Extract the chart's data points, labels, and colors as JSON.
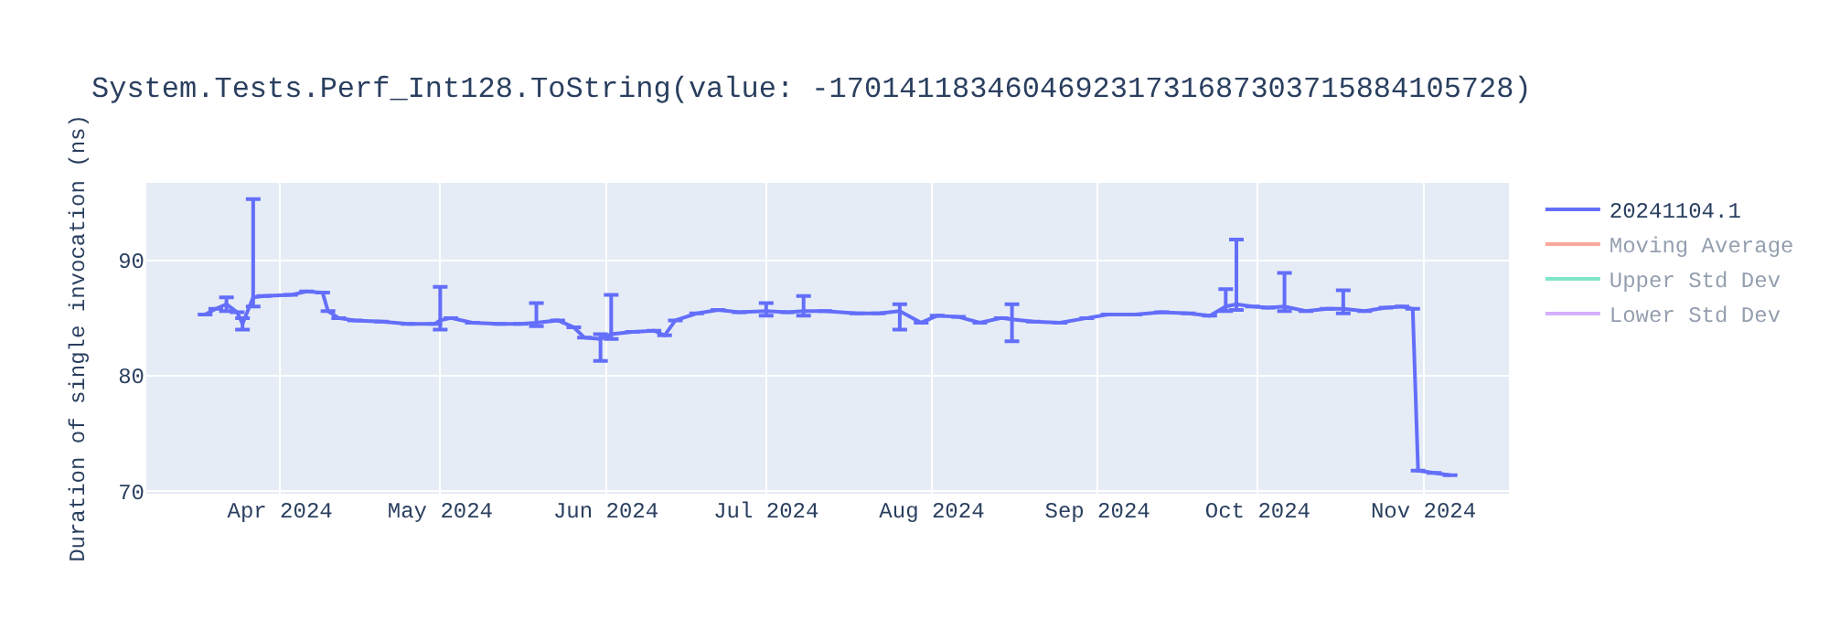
{
  "chart_data": {
    "type": "line",
    "title": "System.Tests.Perf_Int128.ToString(value: -170141183460469231731687303715884105728)",
    "ylabel": "Duration of single invocation (ns)",
    "x": [
      "2024-03-18",
      "2024-03-20",
      "2024-03-22",
      "2024-03-24",
      "2024-03-25",
      "2024-03-27",
      "2024-03-29",
      "2024-04-03",
      "2024-04-06",
      "2024-04-09",
      "2024-04-10",
      "2024-04-12",
      "2024-04-15",
      "2024-04-20",
      "2024-04-25",
      "2024-04-30",
      "2024-05-01",
      "2024-05-03",
      "2024-05-07",
      "2024-05-12",
      "2024-05-16",
      "2024-05-19",
      "2024-05-23",
      "2024-05-26",
      "2024-05-28",
      "2024-05-31",
      "2024-06-02",
      "2024-06-06",
      "2024-06-10",
      "2024-06-12",
      "2024-06-14",
      "2024-06-18",
      "2024-06-22",
      "2024-06-26",
      "2024-07-01",
      "2024-07-05",
      "2024-07-08",
      "2024-07-12",
      "2024-07-18",
      "2024-07-22",
      "2024-07-26",
      "2024-07-30",
      "2024-08-02",
      "2024-08-06",
      "2024-08-10",
      "2024-08-14",
      "2024-08-16",
      "2024-08-20",
      "2024-08-25",
      "2024-08-30",
      "2024-09-03",
      "2024-09-08",
      "2024-09-13",
      "2024-09-18",
      "2024-09-22",
      "2024-09-25",
      "2024-09-27",
      "2024-09-30",
      "2024-10-03",
      "2024-10-06",
      "2024-10-10",
      "2024-10-14",
      "2024-10-17",
      "2024-10-21",
      "2024-10-25",
      "2024-10-28",
      "2024-10-30",
      "2024-10-31",
      "2024-11-03",
      "2024-11-06"
    ],
    "series": [
      {
        "name": "20241104.1",
        "color": "#636efa",
        "values": [
          85.3,
          85.8,
          86.2,
          85.5,
          84.5,
          86.8,
          86.9,
          87.0,
          87.3,
          87.2,
          85.6,
          85.0,
          84.8,
          84.7,
          84.5,
          84.5,
          84.8,
          85.0,
          84.6,
          84.5,
          84.5,
          84.6,
          84.8,
          84.2,
          83.3,
          83.2,
          83.6,
          83.8,
          83.9,
          83.5,
          84.8,
          85.4,
          85.7,
          85.5,
          85.6,
          85.5,
          85.6,
          85.6,
          85.4,
          85.4,
          85.6,
          84.6,
          85.2,
          85.1,
          84.6,
          85.0,
          84.9,
          84.7,
          84.6,
          85.0,
          85.3,
          85.3,
          85.5,
          85.4,
          85.2,
          86.0,
          86.2,
          86.0,
          85.9,
          86.0,
          85.6,
          85.8,
          85.8,
          85.6,
          85.9,
          86.0,
          85.8,
          71.8,
          71.6,
          71.4
        ],
        "errors": [
          null,
          null,
          [
            85.6,
            86.8
          ],
          null,
          [
            84.0,
            85.0
          ],
          [
            86.0,
            95.3
          ],
          null,
          null,
          null,
          null,
          null,
          null,
          null,
          null,
          null,
          null,
          [
            84.0,
            87.7
          ],
          null,
          null,
          null,
          null,
          [
            84.3,
            86.3
          ],
          null,
          null,
          null,
          [
            81.3,
            83.6
          ],
          [
            83.2,
            87.0
          ],
          null,
          null,
          null,
          null,
          null,
          null,
          null,
          [
            85.2,
            86.3
          ],
          null,
          [
            85.2,
            86.9
          ],
          null,
          null,
          null,
          [
            84.0,
            86.2
          ],
          null,
          null,
          null,
          null,
          null,
          [
            83.0,
            86.2
          ],
          null,
          null,
          null,
          null,
          null,
          null,
          null,
          null,
          [
            85.6,
            87.5
          ],
          [
            85.7,
            91.8
          ],
          null,
          null,
          [
            85.6,
            88.9
          ],
          null,
          null,
          [
            85.4,
            87.4
          ],
          null,
          null,
          null,
          null,
          null,
          null,
          null
        ]
      },
      {
        "name": "Moving Average",
        "color": "#ef553b",
        "values": [
          null,
          null,
          null,
          null,
          null,
          null,
          null,
          null,
          null,
          null,
          null,
          null,
          null,
          null,
          null,
          null,
          null,
          null,
          null,
          null,
          null,
          null,
          null,
          null,
          null,
          null,
          null,
          null,
          null,
          null,
          null,
          null,
          null,
          null,
          null,
          null,
          null,
          null,
          null,
          null,
          null,
          null,
          null,
          null,
          null,
          null,
          null,
          null,
          null,
          null,
          null,
          null,
          null,
          null,
          null,
          null,
          null,
          null,
          null,
          null,
          null,
          null,
          null,
          null,
          null,
          null,
          null,
          null,
          null,
          null
        ]
      },
      {
        "name": "Upper Std Dev",
        "color": "#00cc96",
        "values": [
          null,
          null,
          null,
          null,
          null,
          null,
          null,
          null,
          null,
          null,
          null,
          null,
          null,
          null,
          null,
          null,
          null,
          null,
          null,
          null,
          null,
          null,
          null,
          null,
          null,
          null,
          null,
          null,
          null,
          null,
          null,
          null,
          null,
          null,
          null,
          null,
          null,
          null,
          null,
          null,
          null,
          null,
          null,
          null,
          null,
          null,
          null,
          null,
          null,
          null,
          null,
          null,
          null,
          null,
          null,
          null,
          null,
          null,
          null,
          null,
          null,
          null,
          null,
          null,
          null,
          null,
          null,
          null,
          null,
          null
        ]
      },
      {
        "name": "Lower Std Dev",
        "color": "#ab63fa",
        "values": [
          null,
          null,
          null,
          null,
          null,
          null,
          null,
          null,
          null,
          null,
          null,
          null,
          null,
          null,
          null,
          null,
          null,
          null,
          null,
          null,
          null,
          null,
          null,
          null,
          null,
          null,
          null,
          null,
          null,
          null,
          null,
          null,
          null,
          null,
          null,
          null,
          null,
          null,
          null,
          null,
          null,
          null,
          null,
          null,
          null,
          null,
          null,
          null,
          null,
          null,
          null,
          null,
          null,
          null,
          null,
          null,
          null,
          null,
          null,
          null,
          null,
          null,
          null,
          null,
          null,
          null,
          null,
          null,
          null,
          null
        ]
      }
    ],
    "xlim": [
      "2024-03-07",
      "2024-11-17"
    ],
    "xticks": [
      {
        "value": "2024-04-01",
        "label": "Apr 2024"
      },
      {
        "value": "2024-05-01",
        "label": "May 2024"
      },
      {
        "value": "2024-06-01",
        "label": "Jun 2024"
      },
      {
        "value": "2024-07-01",
        "label": "Jul 2024"
      },
      {
        "value": "2024-08-01",
        "label": "Aug 2024"
      },
      {
        "value": "2024-09-01",
        "label": "Sep 2024"
      },
      {
        "value": "2024-10-01",
        "label": "Oct 2024"
      },
      {
        "value": "2024-11-01",
        "label": "Nov 2024"
      }
    ],
    "ylim": [
      69.8,
      96.7
    ],
    "yticks": [
      70,
      80,
      90
    ],
    "grid": true,
    "legend": "top right",
    "marker": "none",
    "line_style": "solid"
  }
}
